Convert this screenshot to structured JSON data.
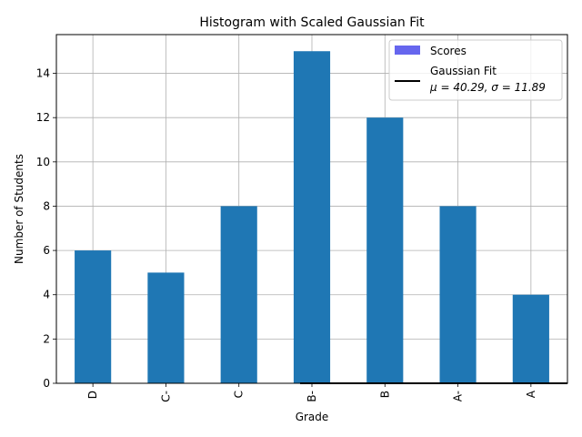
{
  "chart_data": {
    "type": "bar",
    "title": "Histogram with Scaled Gaussian Fit",
    "xlabel": "Grade",
    "ylabel": "Number of Students",
    "categories": [
      "D",
      "C-",
      "C",
      "B-",
      "B",
      "A-",
      "A"
    ],
    "series": [
      {
        "name": "Scores",
        "values": [
          6,
          5,
          8,
          15,
          12,
          8,
          4
        ],
        "color": "#1f77b4",
        "legend_color": "#6666ee"
      }
    ],
    "fit_line": {
      "legend_line1": "Gaussian Fit",
      "legend_line2": "μ = 40.29, σ = 11.89",
      "color": "#000000",
      "x_start": 3,
      "x_end": 6.5,
      "y": 0
    },
    "ylim": [
      0,
      15.75
    ],
    "yticks": [
      0,
      2,
      4,
      6,
      8,
      10,
      12,
      14
    ],
    "grid": true,
    "legend_position": "top-right"
  }
}
